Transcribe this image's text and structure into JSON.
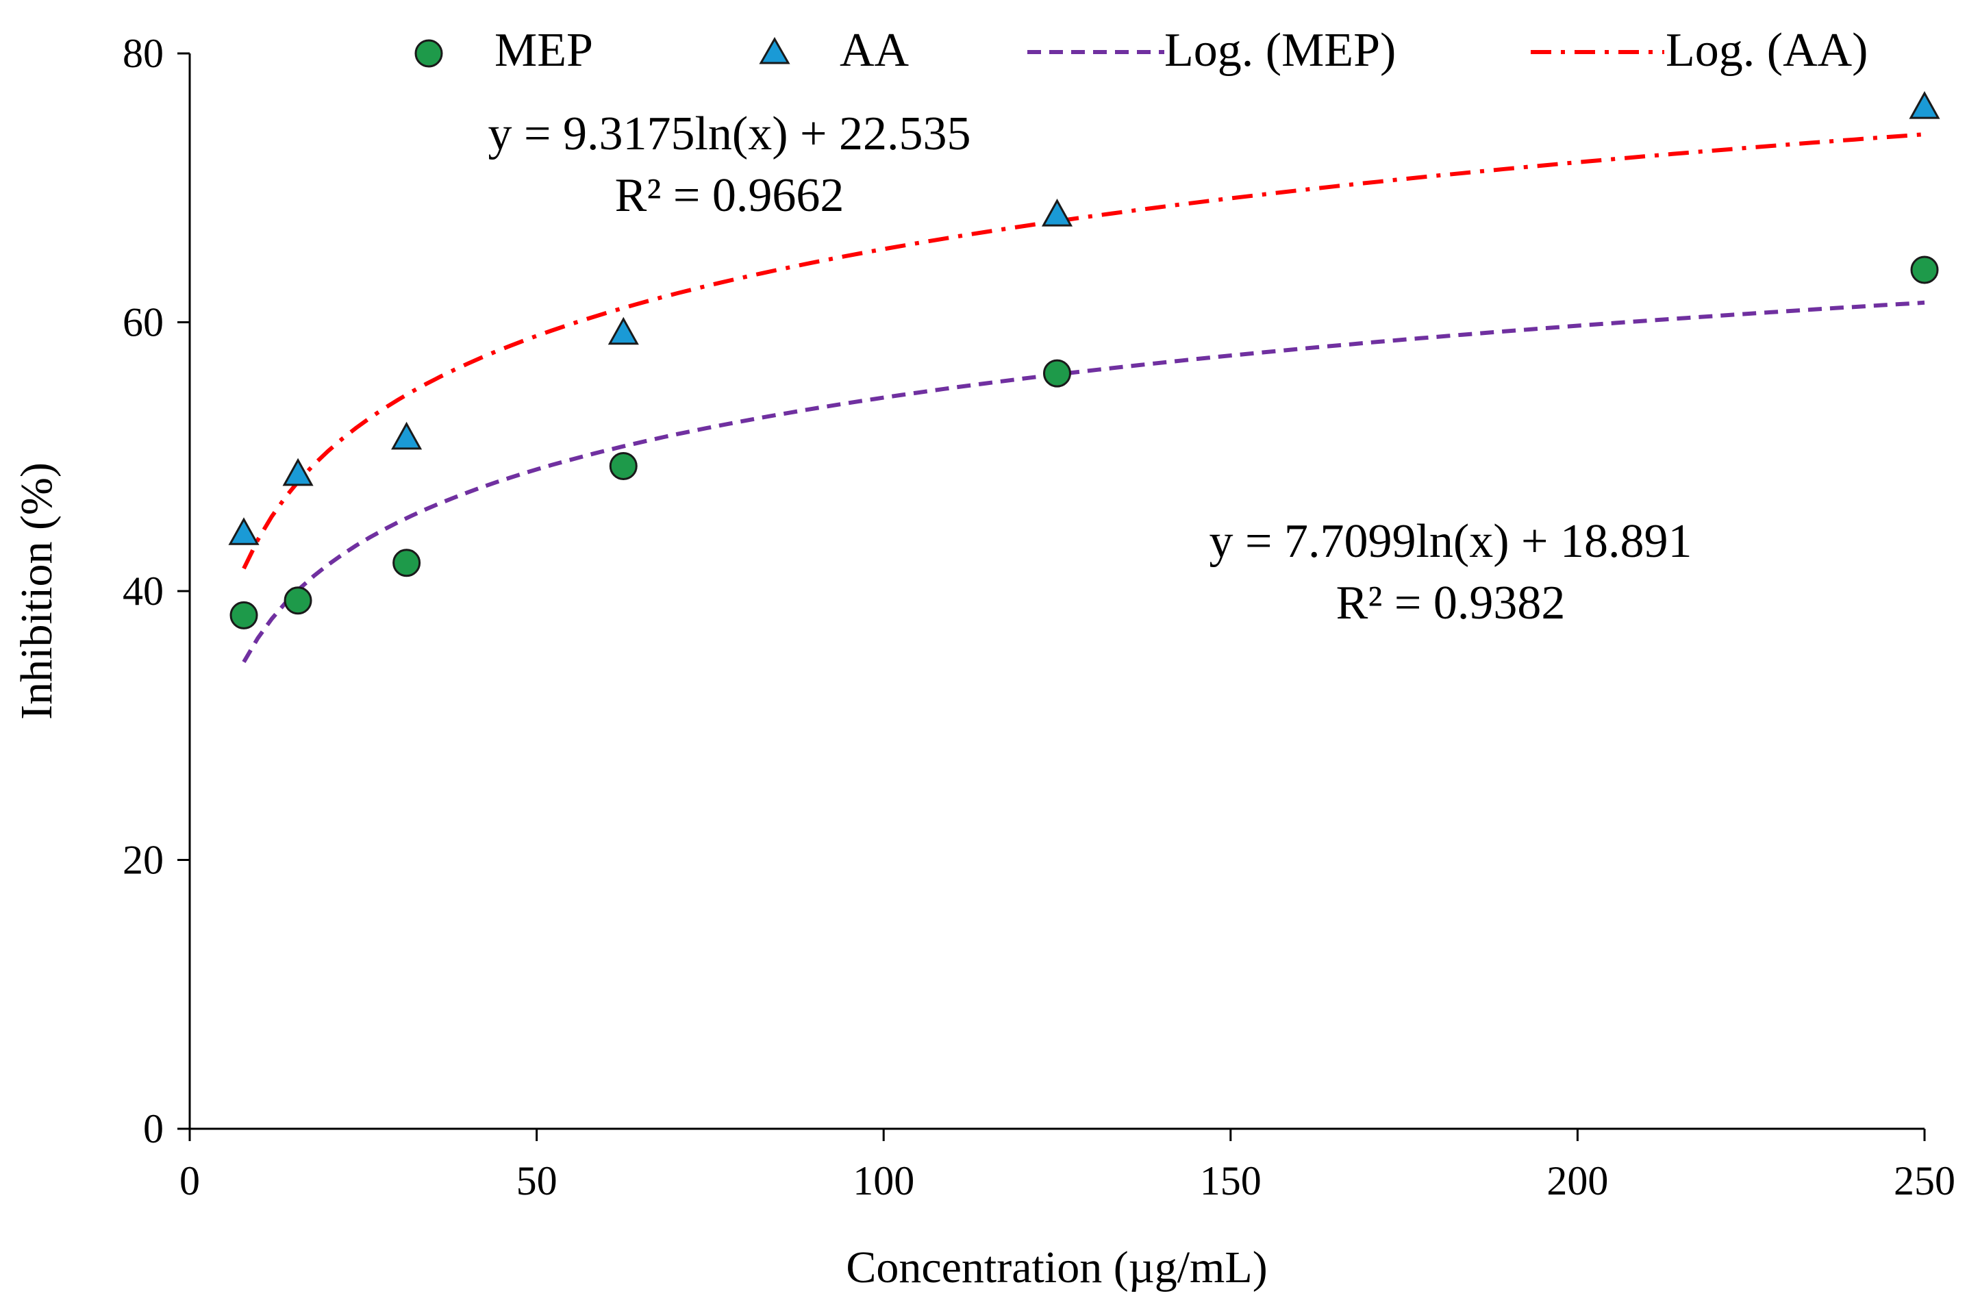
{
  "chart_data": {
    "type": "scatter",
    "title": "",
    "xlabel": "Concentration  (µg/mL)",
    "ylabel": "Inhibition  (%)",
    "xlim": [
      0,
      250
    ],
    "ylim": [
      0,
      80
    ],
    "x_ticks": [
      0,
      50,
      100,
      150,
      200,
      250
    ],
    "y_ticks": [
      0,
      20,
      40,
      60,
      80
    ],
    "grid": false,
    "legend_position": "top",
    "series": [
      {
        "name": "MEP",
        "marker": "circle",
        "color": "#1e9a4a",
        "edge_color": "#1a1a1a",
        "x": [
          7.8,
          15.6,
          31.25,
          62.5,
          125,
          250
        ],
        "y": [
          38.2,
          39.3,
          42.1,
          49.3,
          56.2,
          63.9
        ]
      },
      {
        "name": "AA",
        "marker": "triangle",
        "color": "#1a9ad6",
        "edge_color": "#1a1a1a",
        "x": [
          7.8,
          15.6,
          31.25,
          62.5,
          125,
          250
        ],
        "y": [
          44.2,
          48.6,
          51.3,
          59.1,
          67.9,
          75.9
        ]
      }
    ],
    "trendlines": [
      {
        "name": "Log. (MEP)",
        "type": "logarithmic",
        "a": 7.7099,
        "b": 18.891,
        "x_range": [
          7.8,
          250
        ],
        "color": "#7030a0",
        "dash": "dashed",
        "equation": "y = 7.7099ln(x)  + 18.891",
        "r2": "R² = 0.9382"
      },
      {
        "name": "Log. (AA)",
        "type": "logarithmic",
        "a": 9.3175,
        "b": 22.535,
        "x_range": [
          7.8,
          250
        ],
        "color": "#ff0000",
        "dash": "dash-dot",
        "equation": "y = 9.3175ln(x)  + 22.535",
        "r2": "R² = 0.9662"
      }
    ]
  }
}
